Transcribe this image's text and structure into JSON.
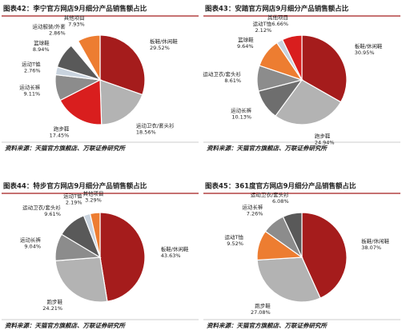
{
  "chart_data": [
    {
      "type": "pie",
      "title": "图表42：李宁官方网店9月细分产品销售额占比",
      "categories": [
        "板鞋/休闲鞋",
        "运动卫衣/套头衫",
        "跑步鞋",
        "运动长裤",
        "运动T恤",
        "篮球鞋",
        "运动服装/外套",
        "其他项目"
      ],
      "values": [
        29.52,
        18.56,
        17.45,
        9.11,
        2.76,
        8.94,
        2.86,
        7.93
      ],
      "value_labels": [
        "29.52%",
        "18.56%",
        "17.45%",
        "9.11%",
        "2.76%",
        "8.94%",
        "2.86%",
        "7.93%"
      ],
      "colors": [
        "#a51c1c",
        "#b3b3b3",
        "#d91e1e",
        "#8c8c8c",
        "#c9d3de",
        "#595959",
        "#ffffff",
        "#ed7d31"
      ],
      "source": "资料来源：天猫官方旗舰店、万联证券研究所"
    },
    {
      "type": "pie",
      "title": "图表43：安踏官方网店9月细分产品销售额占比",
      "categories": [
        "板鞋/休闲鞋",
        "跑步鞋",
        "运动长裤",
        "运动卫衣/套头衫",
        "篮球鞋",
        "运动T恤",
        "其他项目"
      ],
      "values": [
        30.95,
        24.94,
        10.13,
        8.61,
        9.64,
        2.12,
        6.66
      ],
      "value_labels": [
        "30.95%",
        "24.94%",
        "10.13%",
        "8.61%",
        "9.64%",
        "2.12%",
        "6.66%"
      ],
      "colors": [
        "#a51c1c",
        "#b3b3b3",
        "#6e6e6e",
        "#8c8c8c",
        "#ed7d31",
        "#c9d3de",
        "#d91e1e"
      ],
      "source": "资料来源：天猫官方旗舰店、万联证券研究所"
    },
    {
      "type": "pie",
      "title": "图表44：特步官方网店9月细分产品销售额占比",
      "categories": [
        "板鞋/休闲鞋",
        "跑步鞋",
        "运动长裤",
        "运动卫衣/套头衫",
        "运动T恤",
        "其他项目"
      ],
      "values": [
        43.63,
        24.21,
        9.04,
        9.61,
        2.19,
        3.29
      ],
      "value_labels": [
        "43.63%",
        "24.21%",
        "9.04%",
        "9.61%",
        "2.19%",
        "3.29%"
      ],
      "colors": [
        "#a51c1c",
        "#b3b3b3",
        "#8c8c8c",
        "#595959",
        "#c9d3de",
        "#ed7d31"
      ],
      "source": "资料来源：天猫官方旗舰店、万联证券研究所"
    },
    {
      "type": "pie",
      "title": "图表45：361度官方网店9月细分产品销售额占比",
      "categories": [
        "板鞋/休闲鞋",
        "跑步鞋",
        "运动T恤",
        "运动长裤",
        "运动卫衣/套头衫"
      ],
      "values": [
        38.07,
        27.08,
        9.52,
        7.26,
        6.08
      ],
      "value_labels": [
        "38.07%",
        "27.08%",
        "9.52%",
        "7.26%",
        "6.08%"
      ],
      "colors": [
        "#a51c1c",
        "#b3b3b3",
        "#ed7d31",
        "#8c8c8c",
        "#595959"
      ],
      "source": "资料来源：天猫官方旗舰店、万联证券研究所"
    }
  ]
}
